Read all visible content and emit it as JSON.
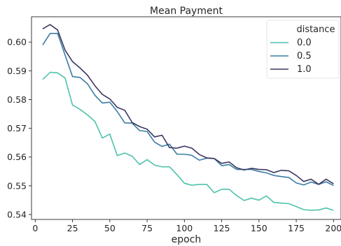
{
  "chart_data": {
    "type": "line",
    "title": "Mean Payment",
    "xlabel": "epoch",
    "ylabel": "",
    "xlim": [
      -2.5,
      205
    ],
    "ylim": [
      0.5383,
      0.6088
    ],
    "xticks": [
      0,
      25,
      50,
      75,
      100,
      125,
      150,
      175,
      200
    ],
    "yticks": [
      0.54,
      0.55,
      0.56,
      0.57,
      0.58,
      0.59,
      0.6
    ],
    "ytick_labels": [
      "0.54",
      "0.55",
      "0.56",
      "0.57",
      "0.58",
      "0.59",
      "0.60"
    ],
    "grid": false,
    "legend": {
      "title": "distance",
      "placement": "top-right"
    },
    "x": [
      5,
      10,
      15,
      20,
      25,
      30,
      35,
      40,
      45,
      50,
      55,
      60,
      65,
      70,
      75,
      80,
      85,
      90,
      95,
      100,
      105,
      110,
      115,
      120,
      125,
      130,
      135,
      140,
      145,
      150,
      155,
      160,
      165,
      170,
      175,
      180,
      185,
      190,
      195,
      200
    ],
    "series": [
      {
        "name": "0.0",
        "color": "#4fc2ad",
        "values": [
          0.587,
          0.5895,
          0.5893,
          0.5875,
          0.5781,
          0.5766,
          0.5747,
          0.5724,
          0.5666,
          0.568,
          0.5605,
          0.5614,
          0.5603,
          0.5574,
          0.5591,
          0.5572,
          0.5566,
          0.5566,
          0.5539,
          0.5509,
          0.5502,
          0.5505,
          0.5505,
          0.5476,
          0.5488,
          0.5488,
          0.5466,
          0.5449,
          0.5457,
          0.545,
          0.5465,
          0.5442,
          0.544,
          0.5438,
          0.5428,
          0.5417,
          0.5415,
          0.5416,
          0.5423,
          0.5415
        ]
      },
      {
        "name": "0.5",
        "color": "#3a7ca5",
        "values": [
          0.599,
          0.603,
          0.603,
          0.5955,
          0.588,
          0.5877,
          0.5855,
          0.5815,
          0.5788,
          0.5791,
          0.5758,
          0.5719,
          0.5718,
          0.5692,
          0.5689,
          0.5652,
          0.5637,
          0.5645,
          0.561,
          0.561,
          0.5606,
          0.5589,
          0.5596,
          0.5595,
          0.557,
          0.5574,
          0.5557,
          0.5557,
          0.5557,
          0.555,
          0.5545,
          0.5536,
          0.5532,
          0.5529,
          0.551,
          0.5503,
          0.5513,
          0.5505,
          0.5514,
          0.5501
        ]
      },
      {
        "name": "1.0",
        "color": "#3a3760",
        "values": [
          0.6046,
          0.6061,
          0.6042,
          0.5972,
          0.5932,
          0.591,
          0.5885,
          0.5848,
          0.5818,
          0.5802,
          0.5773,
          0.5763,
          0.572,
          0.5706,
          0.5697,
          0.567,
          0.5676,
          0.5633,
          0.5631,
          0.5638,
          0.5631,
          0.5609,
          0.5597,
          0.5595,
          0.5578,
          0.5583,
          0.5563,
          0.5555,
          0.5561,
          0.5557,
          0.5556,
          0.5546,
          0.5554,
          0.5552,
          0.5536,
          0.5515,
          0.5523,
          0.5505,
          0.5523,
          0.5507
        ]
      }
    ]
  }
}
